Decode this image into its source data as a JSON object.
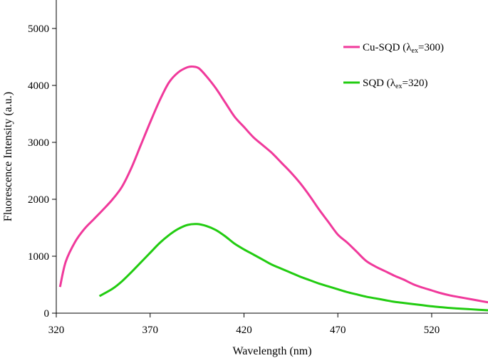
{
  "chart_data": {
    "type": "line",
    "title": "",
    "xlabel": "Wavelength (nm)",
    "ylabel": "Fluorescence Intensity (a.u.)",
    "xlim": [
      320,
      550
    ],
    "ylim": [
      0,
      5500
    ],
    "xticks": [
      320,
      370,
      420,
      470,
      520
    ],
    "yticks": [
      0,
      1000,
      2000,
      3000,
      4000,
      5000
    ],
    "x_tick_labels": [
      "320",
      "370",
      "420",
      "470",
      "520"
    ],
    "y_tick_labels": [
      "0",
      "1000",
      "2000",
      "3000",
      "4000",
      "5000"
    ],
    "grid": false,
    "legend_position": "top-right",
    "series": [
      {
        "name": "Cu-SQD (λex=300)",
        "legend": {
          "prefix": "Cu-SQD (",
          "lambda": "λ",
          "sub": "ex",
          "suffix": "=300)"
        },
        "color": "#f0399b",
        "x": [
          322,
          325,
          330,
          335,
          340,
          345,
          350,
          355,
          360,
          365,
          370,
          375,
          380,
          385,
          390,
          393,
          396,
          400,
          405,
          410,
          415,
          420,
          425,
          430,
          435,
          440,
          445,
          450,
          455,
          460,
          465,
          470,
          475,
          480,
          485,
          490,
          495,
          500,
          505,
          510,
          515,
          520,
          525,
          530,
          535,
          540,
          545,
          550
        ],
        "y": [
          460,
          900,
          1250,
          1480,
          1650,
          1820,
          2000,
          2220,
          2550,
          2950,
          3350,
          3730,
          4050,
          4230,
          4320,
          4330,
          4300,
          4160,
          3950,
          3700,
          3450,
          3270,
          3090,
          2950,
          2810,
          2640,
          2470,
          2280,
          2060,
          1820,
          1600,
          1380,
          1240,
          1080,
          920,
          820,
          740,
          660,
          590,
          510,
          450,
          400,
          350,
          310,
          280,
          250,
          220,
          190
        ]
      },
      {
        "name": "SQD (λex=320)",
        "legend": {
          "prefix": "SQD (",
          "lambda": "λ",
          "sub": "ex",
          "suffix": "=320)"
        },
        "color": "#22cc11",
        "x": [
          343,
          350,
          355,
          360,
          365,
          370,
          375,
          380,
          385,
          390,
          395,
          400,
          405,
          410,
          415,
          420,
          425,
          430,
          435,
          440,
          445,
          450,
          455,
          460,
          465,
          470,
          475,
          480,
          485,
          490,
          495,
          500,
          505,
          510,
          515,
          520,
          525,
          530,
          535,
          540,
          545,
          550
        ],
        "y": [
          300,
          430,
          560,
          720,
          890,
          1060,
          1230,
          1370,
          1480,
          1550,
          1565,
          1530,
          1460,
          1350,
          1220,
          1120,
          1030,
          940,
          850,
          780,
          710,
          640,
          580,
          520,
          470,
          420,
          370,
          330,
          290,
          260,
          230,
          200,
          180,
          160,
          140,
          120,
          105,
          90,
          80,
          70,
          60,
          50
        ]
      }
    ]
  }
}
